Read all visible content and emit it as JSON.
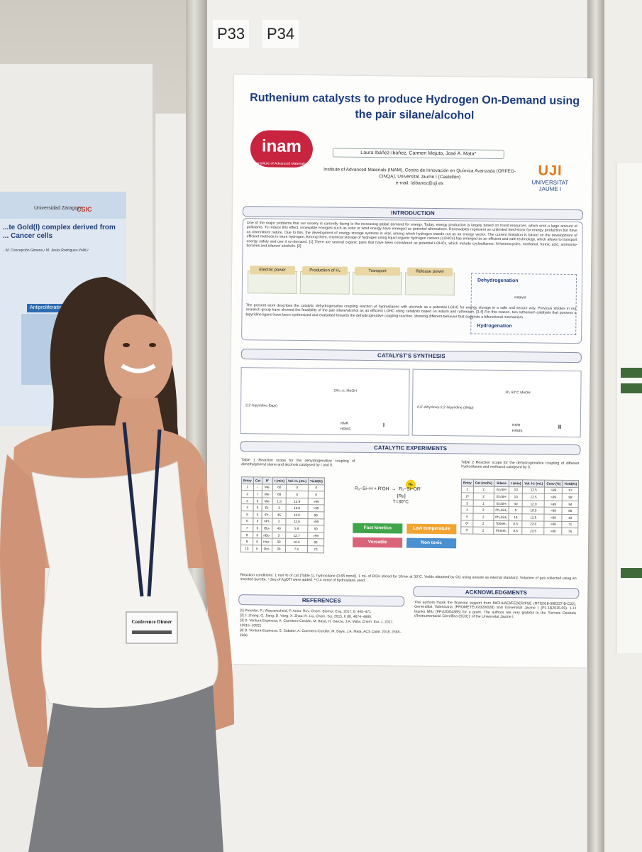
{
  "scene": {
    "board_labels": [
      "P33",
      "P34"
    ],
    "badge_text": "Conference Dinner"
  },
  "left_poster": {
    "title": "...te Gold(I) complex derived from ... Cancer cells",
    "authors": "...M. Concepción Gimeno,¹ M. Jesús Rodríguez-Yoldi,²",
    "logo_university": "Universidad Zaragoza",
    "logo_csic": "CSIC",
    "section": "Antiproliferative effe..."
  },
  "poster": {
    "title": "Ruthenium catalysts to produce Hydrogen On-Demand using the pair silane/alcohol",
    "logo_inam": "inam",
    "logo_inam_sub": "Institute of Advanced Materials",
    "authors": "Laura Ibáñez-Ibáñez, Carmen Mejuto, José A. Mata*",
    "affiliation": "Institute of Advanced Materials (INAM), Centro de Innovación en Química Avanzada (ORFEO-CINQA), Universitat Jaume I (Castellón)",
    "email": "e-mail: laibanez@uji.es",
    "logo_uji_mark": "UJI",
    "logo_uji_name": "UNIVERSITAT JAUME I",
    "sections": {
      "introduction": "INTRODUCTION",
      "synthesis": "CATALYST'S SYNTHESIS",
      "experiments": "CATALYTIC EXPERIMENTS",
      "references": "REFERENCES",
      "acknowledgments": "ACKNOWLEDGMENTS"
    },
    "intro_text": "One of the major problems that our society is currently facing is the increasing global demand for energy. Today, energy production is largely based on fossil resources, which emit a large amount of pollutants. To reduce this effect, renewable energies such as solar or wind energy have emerged as potential alternatives. Renewables represent an unlimited feed-stock for energy production but have an intermittent nature. Due to this, the development of energy storage systems is vital, among which hydrogen stands out as an energy vector. The current limitation is based on the development of efficient methods to store hydrogen. Among them, chemical storage of hydrogen using liquid organic hydrogen carriers (LOHCs) has emerged as an efficient and safe technology, which allows to transport energy safely and use it on-demand. [1] There are several organic pairs that have been considered as potential LOHCs, which include cycloalkanes, N-heterocycles, methanol, formic acid, ammonia-boranes and silanes/ alcohols. [2]",
    "flow_labels": [
      "Electric power",
      "Production of H₂",
      "Transport",
      "Release power"
    ],
    "dehydrogenation": "Dehydrogenation",
    "hydrogenation": "Hydrogenation",
    "catalyst_label": "catalyst",
    "intro_text2": "The present work describes the catalytic dehydrogenative coupling reaction of hydrosilanes with alcohols as a potential LOHC for energy storage in a safe and secure way. Previous studies in our research group have showed the feasibility of the pair silane/alcohol as an efficient LOHC using catalysts based on iridium and ruthenium. [3,4] For this reason, two ruthenium catalysts that possess a bipyridine ligand have been synthesized and evaluated towards the dehydrogenative coupling reaction, showing different behavior that suggests a bifunctional mechanism.",
    "synthesis": {
      "left_ligand": "2,2'-bipyridine (bipy)",
      "left_cond": "24h, r.t. MeOH",
      "left_checks": [
        "NMR",
        "HRMS"
      ],
      "left_product": "I",
      "right_ligand": "6,6'-dihydroxy-2,2'-bipyridine (dhbp)",
      "right_cond": "3h, 60°C MeOH",
      "right_checks": [
        "NMR",
        "HRMS"
      ],
      "right_product": "II"
    },
    "table1": {
      "caption": "Table 1 Reaction scope for the dehydrogenative coupling of dimethylphenyl silane and alcohols catalysed by I and II.",
      "headers": [
        "Entry",
        "Cat",
        "R'",
        "t (min)",
        "Vol. H₂ (mL)",
        "Yield(%)"
      ],
      "rows": [
        [
          "1",
          "-",
          "Me-",
          "60",
          "0",
          "0"
        ],
        [
          "2",
          "I",
          "Me-",
          "60",
          "0",
          "0"
        ],
        [
          "3",
          "II",
          "Me-",
          "1.5",
          "12.9",
          ">99"
        ],
        [
          "4",
          "II",
          "Et-",
          "3",
          "12.8",
          ">99"
        ],
        [
          "5",
          "II",
          "iPr-",
          "45",
          "12.0",
          "95"
        ],
        [
          "6",
          "II",
          "nPr-",
          "2",
          "12.6",
          ">99"
        ],
        [
          "7",
          "II",
          "tBu-",
          "40",
          "5.9",
          "50"
        ],
        [
          "8",
          "II",
          "nBu-",
          "3",
          "12.7",
          ">99"
        ],
        [
          "9",
          "II",
          "Hex-",
          "30",
          "10.3",
          "80"
        ],
        [
          "10",
          "II",
          "Oct-",
          "30",
          "7.5",
          "70"
        ]
      ]
    },
    "reaction": {
      "left": "R₃−Si−H + R'OH",
      "catalyst": "[Ru]",
      "temp": "T=30°C",
      "right": "R₃−Si−OR'",
      "h2": "H₂"
    },
    "features": [
      "Fast kinetics",
      "Low temperature",
      "Versatile",
      "Non toxic"
    ],
    "table2": {
      "caption": "Table 2 Reaction scope for the dehydrogenative coupling of different hydrosilanes and methanol catalysed by II.",
      "headers": [
        "Entry",
        "Cat (mol%)",
        "Silane",
        "t (min)",
        "Vol. H₂ (mL)",
        "Conv (%)",
        "Yield(%)"
      ],
      "rows": [
        [
          "1",
          "2",
          "Et₃SiH",
          "10",
          "12.5",
          ">99",
          "97"
        ],
        [
          "2ᵃ",
          "2",
          "Et₃SiH",
          "10",
          "12.5",
          ">99",
          "98"
        ],
        [
          "3",
          "1",
          "Et₃SiH",
          "40",
          "12.0",
          ">99",
          "94"
        ],
        [
          "4",
          "2",
          "Ph₂SiH₂",
          "5",
          "18.5",
          ">99",
          "65"
        ],
        [
          "5",
          "2",
          "Ph₂SiH₂",
          "15",
          "11.5",
          ">99",
          "43"
        ],
        [
          "6ᵇ",
          "2",
          "TolSiH₃",
          "0.5",
          "23.0",
          ">99",
          "71"
        ],
        [
          "7ᵇ",
          "2",
          "PhSiH₃",
          "0.5",
          "23.5",
          ">99",
          "76"
        ]
      ]
    },
    "conditions": "Reaction conditions: 1 mol % of cat (Table 1), hydrosilane (0.65 mmol), 1 mL of ROH stirred for 10min at 30°C. Yields obtained by GC using anisole as internal standard. Volumen of gas collected using an inverted burette. ᵃ 2eq of AgOTf were added. ᵇ 0.4 mmol of hydrosilane used",
    "references": [
      "[1] Preuster, P.; Wasserscheid, P. Annu. Rev. Chem. Biomol. Eng. 2017, 8, 445–471",
      "[2] J. Zhang; Q. Jiang; D. Yang; X. Zhao; R. Liu, Chem. Sci. 2015, 6 (8), 4674–4680.",
      "[3] D. Ventura-Espinosa, A. Carretero-Cerdán, M. Baya, H. García, J.A. Mata, Chem. Eur. J. 2017, 10815–10821",
      "[4] D. Ventura-Espinosa, S. Sabater, A. Carretero-Cerdán, M. Baya, J.A. Mata, ACS Catal. 2018, 2558–2566."
    ],
    "acknowledgments": "The authors thank the financial support from MICIU/AEI/FEDER/FSE (RTI2018-098237-B-C22), Generalitat Valenciana (PROMETEU/2020/028) and Universitat Jaume I (P1.1B2015-09). L.I.I thanks MIU (FPU20/04385) for a grant. The authors are very grateful to the 'Serveis Centrals d'Instrumentació Científica (SCIC)' of the Universitat Jaume I."
  },
  "colors": {
    "title_blue": "#1d3c7e",
    "inam_red": "#c9243f",
    "uji_orange": "#e07a16",
    "fast_kinetics": "#3fa54a",
    "low_temperature": "#f0a432",
    "versatile": "#d9647a",
    "non_toxic": "#4a8fd0"
  }
}
